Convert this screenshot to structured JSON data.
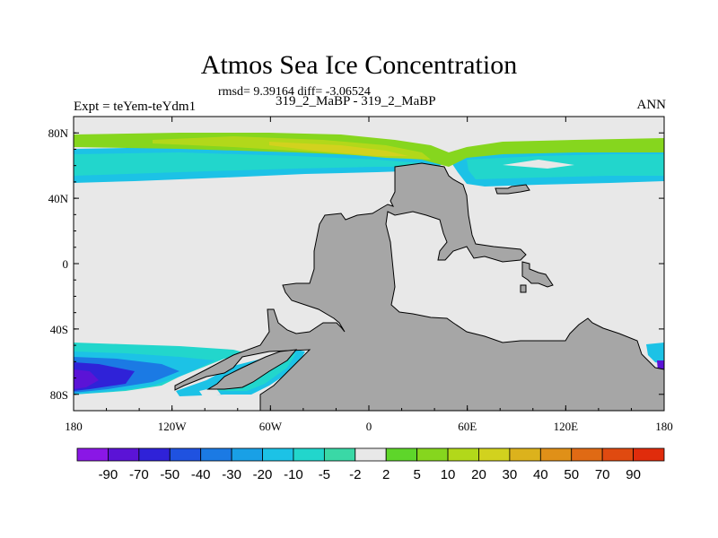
{
  "chart_data": {
    "type": "heatmap",
    "title": "Atmos Sea Ice Concentration",
    "stats": "rmsd= 9.39164 diff= -3.06524",
    "experiment_label": "Expt = teYem-teYdm1",
    "case_label": "319_2_MaBP - 319_2_MaBP",
    "season": "ANN",
    "x_ticks": [
      {
        "value": -180,
        "label": "180"
      },
      {
        "value": -120,
        "label": "120W"
      },
      {
        "value": -60,
        "label": "60W"
      },
      {
        "value": 0,
        "label": "0"
      },
      {
        "value": 60,
        "label": "60E"
      },
      {
        "value": 120,
        "label": "120E"
      },
      {
        "value": 180,
        "label": "180"
      }
    ],
    "y_ticks": [
      {
        "value": 80,
        "label": "80N"
      },
      {
        "value": 40,
        "label": "40N"
      },
      {
        "value": 0,
        "label": "0"
      },
      {
        "value": -40,
        "label": "40S"
      },
      {
        "value": -80,
        "label": "80S"
      }
    ],
    "xlim": [
      -180,
      180
    ],
    "ylim": [
      -90,
      90
    ],
    "colorbar": {
      "levels": [
        "-90",
        "-70",
        "-50",
        "-40",
        "-30",
        "-20",
        "-10",
        "-5",
        "-2",
        "2",
        "5",
        "10",
        "20",
        "30",
        "40",
        "50",
        "70",
        "90"
      ],
      "colors": [
        "#8a17e6",
        "#5b13d6",
        "#2f22d8",
        "#1f52e0",
        "#1b7ae4",
        "#19a0e6",
        "#1cc2e6",
        "#22d6cc",
        "#3ad8a6",
        "#e8e8e8",
        "#5ed62a",
        "#86d61e",
        "#b2d81a",
        "#d2d21e",
        "#dcb21c",
        "#e09018",
        "#e06a14",
        "#e04a10",
        "#e02c0c"
      ]
    },
    "colors": {
      "land": "#a6a6a6",
      "no_change": "#e8e8e8"
    }
  }
}
